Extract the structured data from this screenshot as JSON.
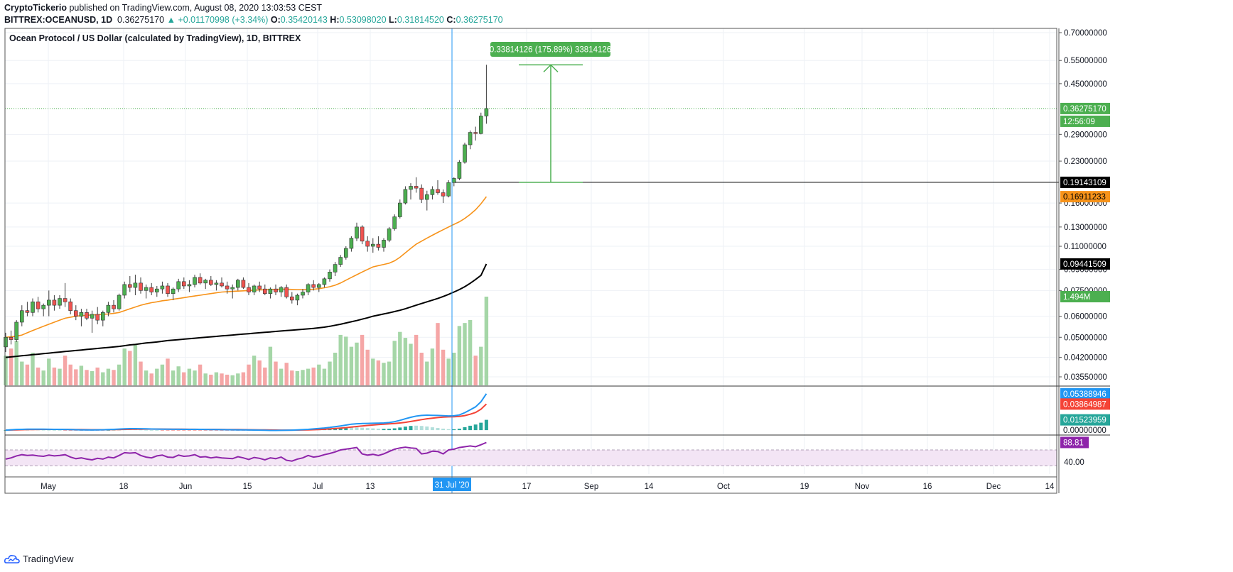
{
  "header": {
    "publisher": "CryptoTickerio",
    "published_text": "published on TradingView.com, August 08, 2020 13:03:53 CEST",
    "symbol": "BITTREX:OCEANUSD, 1D",
    "last": "0.36275170",
    "change": "+0.01170998 (+3.34%)",
    "o_label": "O:",
    "o_value": "0.35420143",
    "h_label": "H:",
    "h_value": "0.53098020",
    "l_label": "L:",
    "l_value": "0.31814520",
    "c_label": "C:",
    "c_value": "0.36275170"
  },
  "chart_data": {
    "type": "candlestick",
    "title": "Ocean Protocol / US Dollar (calculated by TradingView), 1D, BITTREX",
    "price_axis_labels": [
      "0.70000000",
      "0.55000000",
      "0.45000000",
      "0.29000000",
      "0.23000000",
      "0.16000000",
      "0.13000000",
      "0.11000000",
      "0.09000000",
      "0.07500000",
      "0.06000000",
      "0.05000000",
      "0.04200000",
      "0.03550000"
    ],
    "price_axis_values": [
      0.7,
      0.55,
      0.45,
      0.29,
      0.23,
      0.16,
      0.13,
      0.11,
      0.09,
      0.075,
      0.06,
      0.05,
      0.042,
      0.0355
    ],
    "time_axis_labels": [
      "May",
      "18",
      "Jun",
      "15",
      "Jul",
      "13",
      "17",
      "Sep",
      "14",
      "Oct",
      "19",
      "Nov",
      "16",
      "Dec",
      "14"
    ],
    "crosshair_date": "31 Jul '20",
    "price_labels": {
      "last_price": "0.36275170",
      "countdown": "12:56:09",
      "horizontal_line": "0.19143109",
      "ma_short": "0.16911233",
      "ma_long": "0.09441509",
      "volume": "1.494M"
    },
    "measure_label": "0.33814126 (175.89%) 33814126",
    "measure_from": 0.19143109,
    "measure_to": 0.52957235,
    "candles": [
      [
        0.046,
        0.052,
        0.044,
        0.05
      ],
      [
        0.05,
        0.053,
        0.047,
        0.049
      ],
      [
        0.049,
        0.058,
        0.048,
        0.057
      ],
      [
        0.057,
        0.066,
        0.055,
        0.063
      ],
      [
        0.063,
        0.068,
        0.06,
        0.062
      ],
      [
        0.062,
        0.07,
        0.06,
        0.068
      ],
      [
        0.068,
        0.071,
        0.062,
        0.064
      ],
      [
        0.064,
        0.067,
        0.06,
        0.066
      ],
      [
        0.066,
        0.075,
        0.06,
        0.069
      ],
      [
        0.069,
        0.072,
        0.063,
        0.066
      ],
      [
        0.066,
        0.072,
        0.064,
        0.07
      ],
      [
        0.07,
        0.08,
        0.065,
        0.068
      ],
      [
        0.068,
        0.07,
        0.061,
        0.063
      ],
      [
        0.063,
        0.066,
        0.058,
        0.06
      ],
      [
        0.06,
        0.064,
        0.055,
        0.062
      ],
      [
        0.062,
        0.064,
        0.058,
        0.059
      ],
      [
        0.059,
        0.063,
        0.052,
        0.061
      ],
      [
        0.061,
        0.065,
        0.056,
        0.058
      ],
      [
        0.058,
        0.063,
        0.055,
        0.062
      ],
      [
        0.062,
        0.068,
        0.06,
        0.066
      ],
      [
        0.066,
        0.069,
        0.062,
        0.064
      ],
      [
        0.064,
        0.073,
        0.063,
        0.072
      ],
      [
        0.072,
        0.081,
        0.07,
        0.079
      ],
      [
        0.079,
        0.085,
        0.074,
        0.077
      ],
      [
        0.077,
        0.086,
        0.072,
        0.08
      ],
      [
        0.08,
        0.084,
        0.073,
        0.075
      ],
      [
        0.075,
        0.079,
        0.07,
        0.077
      ],
      [
        0.077,
        0.08,
        0.072,
        0.074
      ],
      [
        0.074,
        0.078,
        0.071,
        0.076
      ],
      [
        0.076,
        0.081,
        0.073,
        0.078
      ],
      [
        0.078,
        0.08,
        0.071,
        0.073
      ],
      [
        0.073,
        0.077,
        0.069,
        0.076
      ],
      [
        0.076,
        0.083,
        0.074,
        0.081
      ],
      [
        0.081,
        0.084,
        0.076,
        0.078
      ],
      [
        0.078,
        0.082,
        0.074,
        0.079
      ],
      [
        0.079,
        0.086,
        0.077,
        0.084
      ],
      [
        0.084,
        0.087,
        0.079,
        0.08
      ],
      [
        0.08,
        0.083,
        0.076,
        0.082
      ],
      [
        0.082,
        0.085,
        0.078,
        0.079
      ],
      [
        0.079,
        0.082,
        0.075,
        0.08
      ],
      [
        0.08,
        0.084,
        0.077,
        0.078
      ],
      [
        0.078,
        0.081,
        0.073,
        0.076
      ],
      [
        0.076,
        0.079,
        0.07,
        0.077
      ],
      [
        0.077,
        0.083,
        0.075,
        0.082
      ],
      [
        0.082,
        0.084,
        0.076,
        0.077
      ],
      [
        0.077,
        0.08,
        0.072,
        0.074
      ],
      [
        0.074,
        0.079,
        0.072,
        0.078
      ],
      [
        0.078,
        0.081,
        0.074,
        0.076
      ],
      [
        0.076,
        0.079,
        0.072,
        0.073
      ],
      [
        0.073,
        0.077,
        0.07,
        0.076
      ],
      [
        0.076,
        0.079,
        0.072,
        0.074
      ],
      [
        0.074,
        0.078,
        0.071,
        0.077
      ],
      [
        0.077,
        0.079,
        0.07,
        0.071
      ],
      [
        0.071,
        0.074,
        0.067,
        0.069
      ],
      [
        0.069,
        0.073,
        0.066,
        0.072
      ],
      [
        0.072,
        0.076,
        0.07,
        0.074
      ],
      [
        0.074,
        0.08,
        0.072,
        0.079
      ],
      [
        0.079,
        0.082,
        0.075,
        0.077
      ],
      [
        0.077,
        0.08,
        0.074,
        0.079
      ],
      [
        0.079,
        0.084,
        0.077,
        0.083
      ],
      [
        0.083,
        0.09,
        0.081,
        0.088
      ],
      [
        0.088,
        0.096,
        0.085,
        0.094
      ],
      [
        0.094,
        0.102,
        0.092,
        0.1
      ],
      [
        0.1,
        0.11,
        0.098,
        0.108
      ],
      [
        0.108,
        0.12,
        0.105,
        0.118
      ],
      [
        0.118,
        0.135,
        0.115,
        0.13
      ],
      [
        0.13,
        0.132,
        0.112,
        0.115
      ],
      [
        0.115,
        0.12,
        0.105,
        0.11
      ],
      [
        0.11,
        0.118,
        0.104,
        0.112
      ],
      [
        0.112,
        0.12,
        0.106,
        0.109
      ],
      [
        0.109,
        0.118,
        0.105,
        0.116
      ],
      [
        0.116,
        0.13,
        0.114,
        0.128
      ],
      [
        0.128,
        0.145,
        0.126,
        0.142
      ],
      [
        0.142,
        0.165,
        0.14,
        0.16
      ],
      [
        0.16,
        0.185,
        0.158,
        0.18
      ],
      [
        0.18,
        0.19,
        0.165,
        0.185
      ],
      [
        0.185,
        0.2,
        0.175,
        0.182
      ],
      [
        0.182,
        0.188,
        0.16,
        0.165
      ],
      [
        0.165,
        0.178,
        0.15,
        0.172
      ],
      [
        0.172,
        0.185,
        0.165,
        0.18
      ],
      [
        0.18,
        0.195,
        0.172,
        0.175
      ],
      [
        0.175,
        0.18,
        0.16,
        0.17
      ],
      [
        0.17,
        0.195,
        0.168,
        0.191
      ],
      [
        0.191,
        0.2,
        0.185,
        0.198
      ],
      [
        0.198,
        0.232,
        0.195,
        0.228
      ],
      [
        0.228,
        0.27,
        0.225,
        0.265
      ],
      [
        0.265,
        0.3,
        0.255,
        0.295
      ],
      [
        0.295,
        0.31,
        0.275,
        0.292
      ],
      [
        0.292,
        0.35,
        0.29,
        0.34
      ],
      [
        0.34,
        0.53,
        0.318,
        0.363
      ]
    ],
    "volumes": [
      0.5,
      0.62,
      0.75,
      0.4,
      0.35,
      0.55,
      0.3,
      0.25,
      0.45,
      0.3,
      0.28,
      0.5,
      0.35,
      0.27,
      0.33,
      0.26,
      0.24,
      0.3,
      0.22,
      0.28,
      0.26,
      0.35,
      0.62,
      0.58,
      0.7,
      0.4,
      0.25,
      0.2,
      0.28,
      0.35,
      0.45,
      0.25,
      0.32,
      0.22,
      0.28,
      0.25,
      0.35,
      0.2,
      0.18,
      0.22,
      0.2,
      0.18,
      0.17,
      0.2,
      0.22,
      0.35,
      0.5,
      0.42,
      0.3,
      0.65,
      0.4,
      0.28,
      0.38,
      0.25,
      0.24,
      0.26,
      0.28,
      0.3,
      0.35,
      0.28,
      0.4,
      0.55,
      0.85,
      0.82,
      0.65,
      0.72,
      0.85,
      0.6,
      0.45,
      0.42,
      0.38,
      0.4,
      0.75,
      0.9,
      0.8,
      0.7,
      0.85,
      0.55,
      0.4,
      0.62,
      1.05,
      0.6,
      0.45,
      0.55,
      1.0,
      1.05,
      1.1,
      0.5,
      0.65,
      1.494
    ],
    "ma_short": [
      0.05,
      0.0502,
      0.0505,
      0.051,
      0.052,
      0.053,
      0.054,
      0.055,
      0.056,
      0.057,
      0.058,
      0.059,
      0.0595,
      0.06,
      0.0603,
      0.0605,
      0.0607,
      0.0608,
      0.061,
      0.0612,
      0.0615,
      0.062,
      0.063,
      0.064,
      0.065,
      0.066,
      0.0668,
      0.0675,
      0.068,
      0.0686,
      0.069,
      0.0695,
      0.07,
      0.0705,
      0.071,
      0.0715,
      0.072,
      0.0725,
      0.073,
      0.0735,
      0.074,
      0.0742,
      0.0744,
      0.0746,
      0.0748,
      0.075,
      0.0752,
      0.0754,
      0.0755,
      0.0756,
      0.0757,
      0.0758,
      0.0758,
      0.0757,
      0.0756,
      0.0755,
      0.0756,
      0.0758,
      0.0762,
      0.0768,
      0.0775,
      0.0785,
      0.08,
      0.082,
      0.084,
      0.086,
      0.088,
      0.09,
      0.092,
      0.093,
      0.094,
      0.095,
      0.097,
      0.1,
      0.104,
      0.108,
      0.112,
      0.115,
      0.118,
      0.121,
      0.124,
      0.127,
      0.13,
      0.133,
      0.136,
      0.14,
      0.145,
      0.151,
      0.159,
      0.16911233
    ],
    "ma_long": [
      0.042,
      0.0422,
      0.0424,
      0.0426,
      0.0428,
      0.043,
      0.0432,
      0.0434,
      0.0436,
      0.0438,
      0.044,
      0.0442,
      0.0444,
      0.0446,
      0.0448,
      0.045,
      0.0452,
      0.0454,
      0.0456,
      0.0458,
      0.046,
      0.0462,
      0.0465,
      0.0468,
      0.047,
      0.0473,
      0.0476,
      0.0478,
      0.048,
      0.0483,
      0.0486,
      0.0488,
      0.049,
      0.0492,
      0.0494,
      0.0496,
      0.0498,
      0.05,
      0.0502,
      0.0504,
      0.0506,
      0.0508,
      0.051,
      0.0512,
      0.0514,
      0.0516,
      0.0518,
      0.052,
      0.0522,
      0.0524,
      0.0526,
      0.0528,
      0.053,
      0.0532,
      0.0534,
      0.0536,
      0.0538,
      0.054,
      0.0543,
      0.0546,
      0.055,
      0.0555,
      0.056,
      0.0566,
      0.0572,
      0.0578,
      0.0585,
      0.0592,
      0.06,
      0.0606,
      0.0612,
      0.0618,
      0.0625,
      0.0632,
      0.064,
      0.065,
      0.066,
      0.067,
      0.068,
      0.069,
      0.07,
      0.0712,
      0.0725,
      0.074,
      0.0756,
      0.0775,
      0.0798,
      0.0825,
      0.0855,
      0.09441509
    ],
    "macd_axis_labels": [
      "0.05388946",
      "0.03864987",
      "0.01523959",
      "0.00000000"
    ],
    "macd_axis_values": [
      0.05388946,
      0.03864987,
      0.01523959,
      0.0
    ],
    "macd_line": [
      0.0,
      0.0005,
      0.001,
      0.0012,
      0.0014,
      0.0015,
      0.0015,
      0.0014,
      0.0013,
      0.0012,
      0.0011,
      0.001,
      0.0008,
      0.0006,
      0.0004,
      0.0003,
      0.0002,
      0.0003,
      0.0005,
      0.0008,
      0.0012,
      0.0016,
      0.002,
      0.0022,
      0.0022,
      0.0021,
      0.0019,
      0.0017,
      0.0016,
      0.0015,
      0.0014,
      0.0013,
      0.0013,
      0.0012,
      0.0012,
      0.0011,
      0.0011,
      0.001,
      0.0009,
      0.0008,
      0.0007,
      0.0006,
      0.0005,
      0.0004,
      0.0003,
      0.0002,
      0.0001,
      0.0,
      -0.0002,
      -0.0004,
      -0.0004,
      -0.0003,
      -0.0002,
      0.0,
      0.0003,
      0.0007,
      0.0012,
      0.0018,
      0.0025,
      0.0032,
      0.004,
      0.005,
      0.0062,
      0.0075,
      0.0088,
      0.0095,
      0.0098,
      0.01,
      0.0102,
      0.0104,
      0.0106,
      0.0112,
      0.0125,
      0.0145,
      0.0168,
      0.019,
      0.0208,
      0.0218,
      0.0222,
      0.022,
      0.0218,
      0.0214,
      0.021,
      0.0212,
      0.0225,
      0.0258,
      0.03,
      0.0345,
      0.042,
      0.05388946
    ],
    "macd_signal": [
      0.0,
      0.0002,
      0.0004,
      0.0006,
      0.0008,
      0.0009,
      0.001,
      0.0011,
      0.0011,
      0.0011,
      0.0011,
      0.0011,
      0.001,
      0.0009,
      0.0008,
      0.0007,
      0.0006,
      0.0006,
      0.0006,
      0.0007,
      0.0008,
      0.0009,
      0.0011,
      0.0013,
      0.0014,
      0.0015,
      0.0016,
      0.0016,
      0.0016,
      0.0016,
      0.0015,
      0.0015,
      0.0014,
      0.0014,
      0.0013,
      0.0013,
      0.0012,
      0.0012,
      0.0011,
      0.0011,
      0.001,
      0.0009,
      0.0009,
      0.0008,
      0.0007,
      0.0006,
      0.0005,
      0.0004,
      0.0003,
      0.0002,
      0.0001,
      0.0,
      0.0,
      0.0,
      0.0001,
      0.0002,
      0.0004,
      0.0006,
      0.0009,
      0.0013,
      0.0018,
      0.0024,
      0.003,
      0.0037,
      0.0045,
      0.0054,
      0.0062,
      0.0069,
      0.0076,
      0.0082,
      0.0087,
      0.0092,
      0.0098,
      0.0106,
      0.0116,
      0.0128,
      0.0142,
      0.0156,
      0.0168,
      0.0178,
      0.0186,
      0.0192,
      0.0196,
      0.0199,
      0.0204,
      0.0215,
      0.0235,
      0.0262,
      0.031,
      0.03864987
    ],
    "rsi_axis_labels": [
      "88.81",
      "40.00"
    ],
    "rsi": [
      47,
      50,
      55,
      58,
      56,
      57,
      55,
      54,
      57,
      55,
      56,
      58,
      52,
      48,
      50,
      47,
      45,
      49,
      47,
      52,
      50,
      56,
      63,
      62,
      63,
      56,
      52,
      50,
      55,
      57,
      52,
      51,
      57,
      54,
      55,
      58,
      52,
      53,
      50,
      52,
      50,
      49,
      48,
      53,
      50,
      46,
      51,
      49,
      45,
      50,
      48,
      52,
      44,
      42,
      47,
      50,
      56,
      52,
      54,
      58,
      61,
      65,
      70,
      72,
      74,
      76,
      60,
      57,
      59,
      56,
      60,
      66,
      72,
      75,
      77,
      75,
      74,
      60,
      62,
      67,
      66,
      60,
      70,
      72,
      76,
      78,
      80,
      78,
      83,
      88.81
    ],
    "rsi_band": [
      30,
      70
    ]
  },
  "footer": {
    "brand": "TradingView"
  }
}
